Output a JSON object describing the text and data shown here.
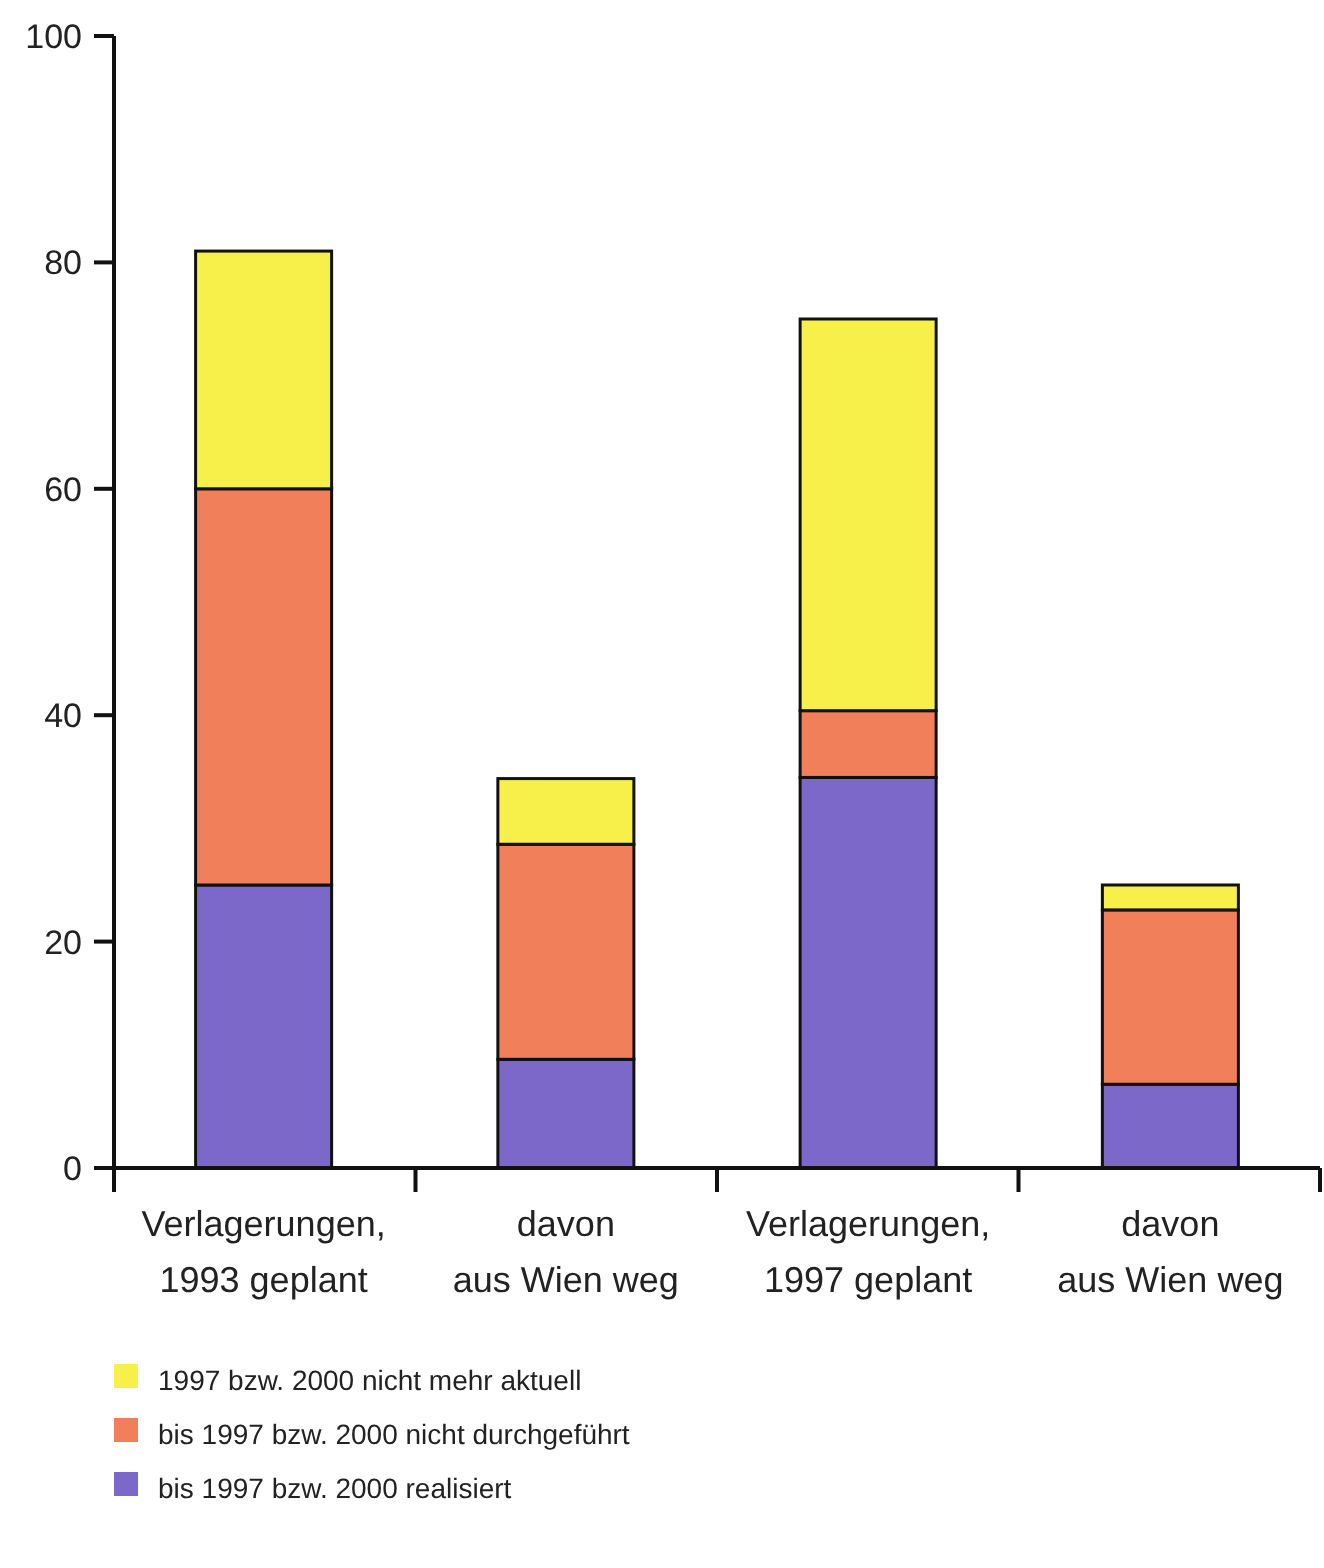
{
  "chart_data": {
    "type": "bar",
    "stacked": true,
    "categories": [
      "Verlagerungen,\n1993 geplant",
      "davon\naus Wien weg",
      "Verlagerungen,\n1997 geplant",
      "davon\naus Wien weg"
    ],
    "series": [
      {
        "name": "bis 1997 bzw. 2000 realisiert",
        "color": "#7b68c8",
        "values": [
          25,
          9.6,
          34.5,
          7.4
        ]
      },
      {
        "name": "bis 1997 bzw. 2000 nicht durchgeführt",
        "color": "#f07f5a",
        "values": [
          35,
          19,
          5.9,
          15.4
        ]
      },
      {
        "name": "1997 bzw. 2000 nicht mehr aktuell",
        "color": "#f7f04a",
        "values": [
          21,
          5.8,
          34.6,
          2.2
        ]
      }
    ],
    "ylim": [
      0,
      100
    ],
    "yticks": [
      0,
      20,
      40,
      60,
      80,
      100
    ],
    "grid": false,
    "legend": "bottom"
  }
}
